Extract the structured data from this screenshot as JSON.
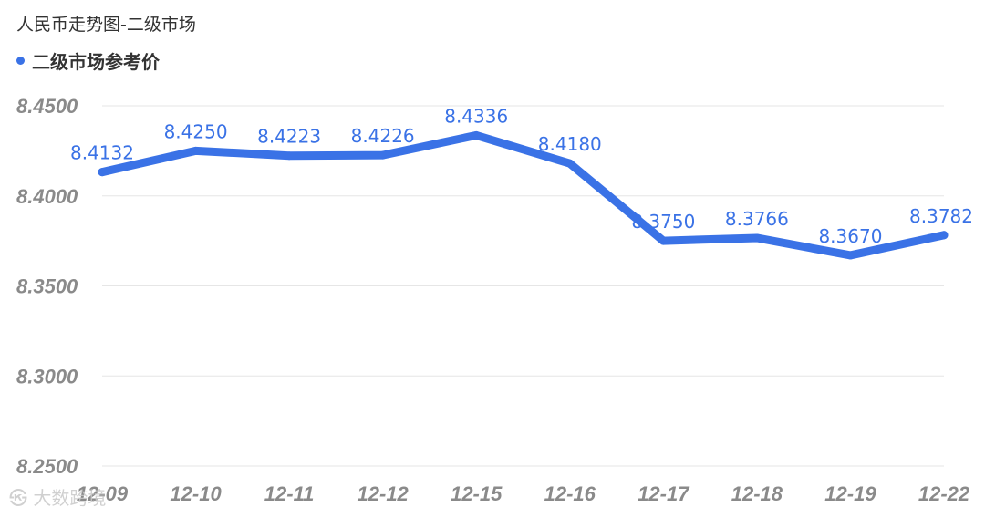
{
  "header": {
    "title": "人民币走势图-二级市场"
  },
  "legend": {
    "label": "二级市场参考价",
    "color": "#3a72e6"
  },
  "watermark": {
    "text": "㉿ 大数跨境"
  },
  "chart_data": {
    "type": "line",
    "categories": [
      "12-09",
      "12-10",
      "12-11",
      "12-12",
      "12-15",
      "12-16",
      "12-17",
      "12-18",
      "12-19",
      "12-22"
    ],
    "series": [
      {
        "name": "二级市场参考价",
        "values": [
          8.4132,
          8.425,
          8.4223,
          8.4226,
          8.4336,
          8.418,
          8.375,
          8.3766,
          8.367,
          8.3782
        ],
        "labels": [
          "8.4132",
          "8.4250",
          "8.4223",
          "8.4226",
          "8.4336",
          "8.4180",
          "8.3750",
          "8.3766",
          "8.3670",
          "8.3782"
        ]
      }
    ],
    "y_ticks": [
      "8.4500",
      "8.4000",
      "8.3500",
      "8.3000",
      "8.2500"
    ],
    "ylim": [
      8.25,
      8.45
    ],
    "grid": true,
    "legend_position": "top-left",
    "line_color": "#3a72e6"
  }
}
